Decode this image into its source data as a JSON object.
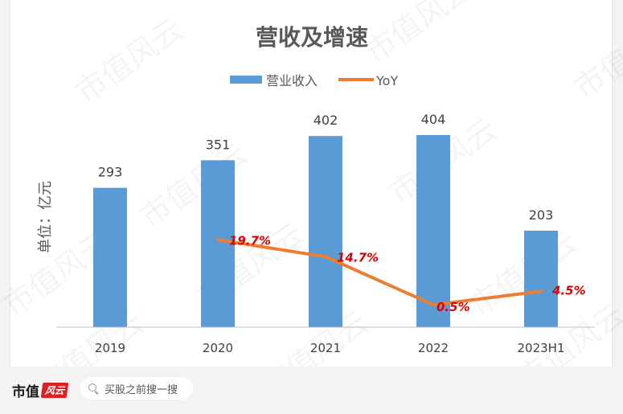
{
  "chart_data": {
    "type": "bar",
    "title": "营收及增速",
    "ylabel": "单位：亿元",
    "categories": [
      "2019",
      "2020",
      "2021",
      "2022",
      "2023H1"
    ],
    "series": [
      {
        "name": "营业收入",
        "kind": "bar",
        "color": "#5b9bd5",
        "values": [
          293,
          351,
          402,
          404,
          203
        ],
        "labels": [
          "293",
          "351",
          "402",
          "404",
          "203"
        ]
      },
      {
        "name": "YoY",
        "kind": "line",
        "color": "#ed7d31",
        "values": [
          null,
          19.7,
          14.7,
          0.5,
          4.5
        ],
        "labels": [
          "",
          "19.7%",
          "14.7%",
          "0.5%",
          "4.5%"
        ],
        "label_color": "#e00000"
      }
    ],
    "ylim": [
      0,
      460
    ],
    "yoy_lim": [
      -8,
      62
    ],
    "legend_position": "top-center",
    "grid": false
  },
  "watermark": "市值风云",
  "footer": {
    "brand": "市值",
    "brand_mark": "风云",
    "search_placeholder": "买股之前搜一搜"
  }
}
